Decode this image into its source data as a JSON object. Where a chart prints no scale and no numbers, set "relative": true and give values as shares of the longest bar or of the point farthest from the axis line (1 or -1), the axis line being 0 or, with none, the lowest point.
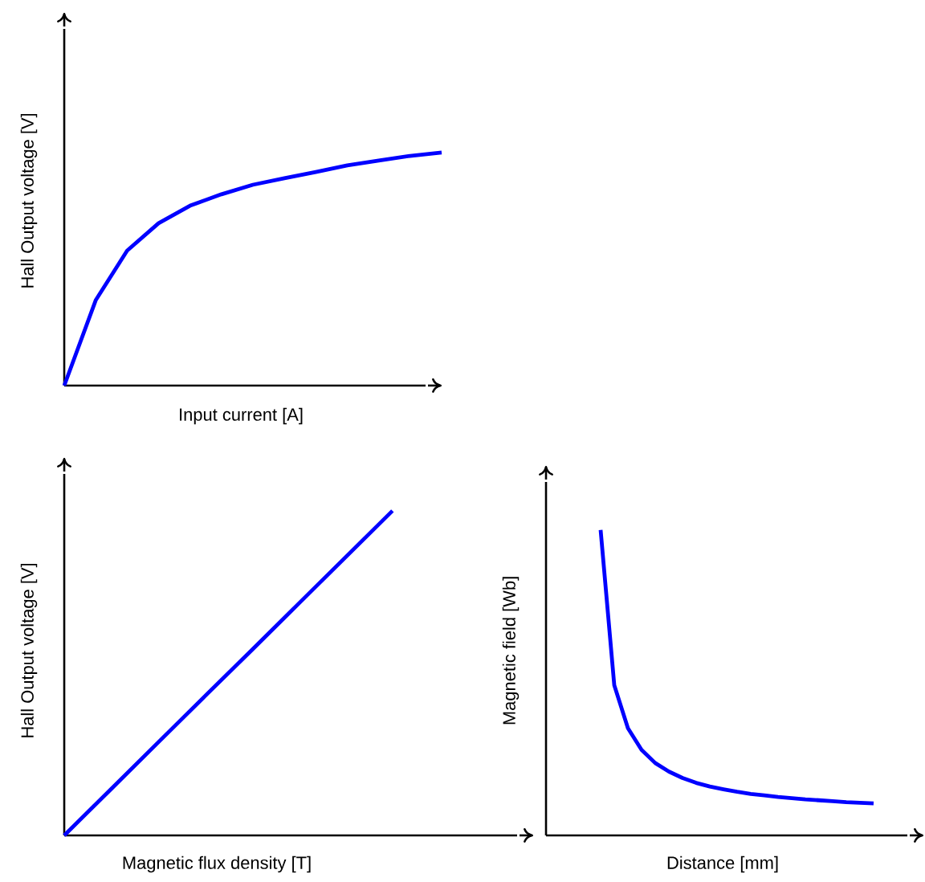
{
  "chart_data": [
    {
      "type": "line",
      "relative": true,
      "xlabel": "Input current [A]",
      "ylabel": "Hall Output voltage [V]",
      "color": "#0000ff",
      "marker": "none",
      "line_style": "solid",
      "categories": [
        null,
        null,
        null,
        null,
        null,
        null,
        null,
        null,
        null,
        null,
        null,
        null,
        null
      ],
      "values": [
        0,
        0.366,
        0.579,
        0.697,
        0.772,
        0.821,
        0.862,
        0.89,
        0.917,
        0.945,
        0.966,
        0.986,
        1
      ]
    },
    {
      "type": "line",
      "relative": true,
      "xlabel": "Magnetic flux density [T]",
      "ylabel": "Hall Output voltage [V]",
      "color": "#0000ff",
      "marker": "none",
      "line_style": "solid",
      "categories": [
        null,
        null,
        null,
        null,
        null,
        null,
        null,
        null,
        null,
        null,
        null
      ],
      "values": [
        0,
        0.143,
        0.286,
        0.429,
        0.571,
        0.714,
        0.857,
        1,
        null,
        null,
        null
      ]
    },
    {
      "type": "line",
      "relative": true,
      "xlabel": "Distance [mm]",
      "ylabel": "Magnetic field [Wb]",
      "color": "#0000ff",
      "marker": "none",
      "line_style": "solid",
      "categories": [
        null,
        null,
        null,
        null,
        null,
        null,
        null,
        null,
        null,
        null,
        null,
        null,
        null,
        null,
        null,
        null,
        null,
        null,
        null,
        null,
        null,
        null,
        null,
        null,
        null,
        null,
        null,
        null
      ],
      "values": [
        null,
        null,
        null,
        null,
        1,
        0.492,
        0.351,
        0.28,
        0.237,
        0.209,
        0.188,
        0.172,
        0.16,
        0.151,
        0.143,
        0.136,
        0.131,
        0.126,
        0.122,
        0.118,
        0.115,
        0.112,
        0.109,
        0.107,
        0.105,
        null,
        null,
        null
      ]
    }
  ]
}
